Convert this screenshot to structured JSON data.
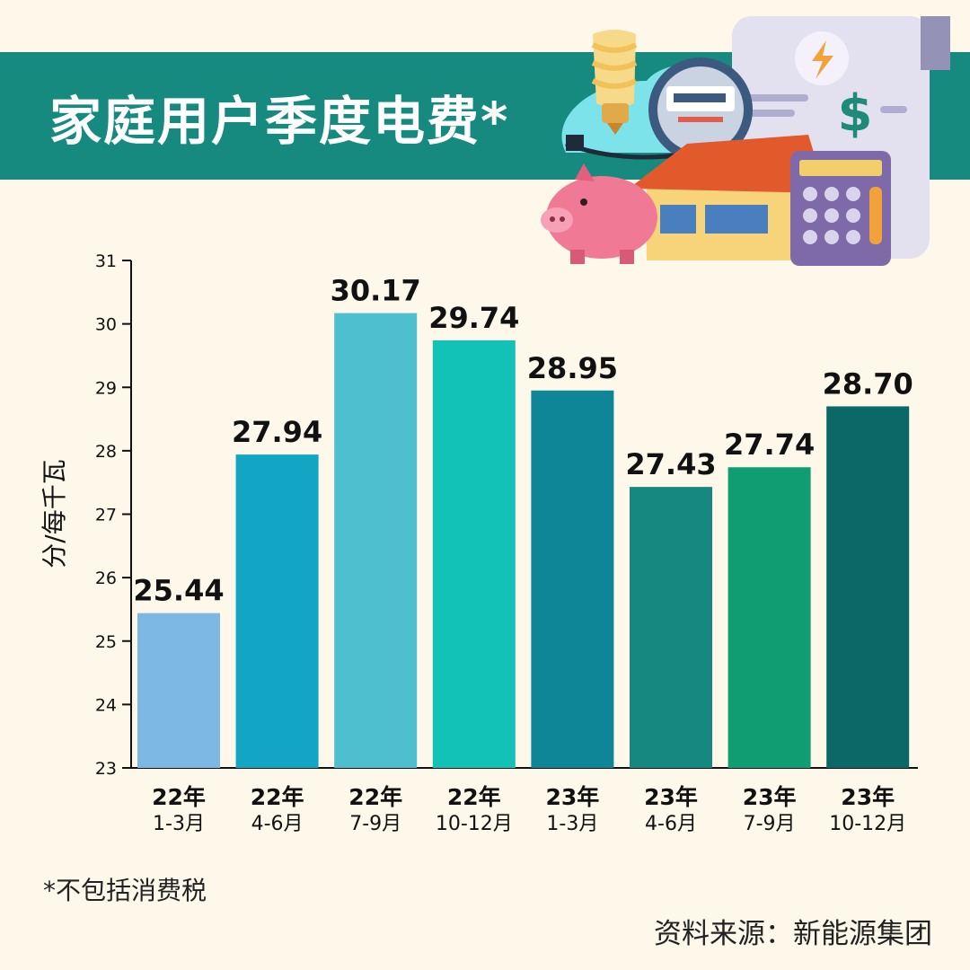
{
  "header": {
    "title": "家庭用户季度电费*"
  },
  "chart_data": {
    "type": "bar",
    "title": "家庭用户季度电费*",
    "ylabel": "分/每千瓦",
    "xlabel": "",
    "ylim": [
      23,
      31
    ],
    "yticks": [
      23,
      24,
      25,
      26,
      27,
      28,
      29,
      30,
      31
    ],
    "categories": [
      {
        "year": "22年",
        "period": "1-3月"
      },
      {
        "year": "22年",
        "period": "4-6月"
      },
      {
        "year": "22年",
        "period": "7-9月"
      },
      {
        "year": "22年",
        "period": "10-12月"
      },
      {
        "year": "23年",
        "period": "1-3月"
      },
      {
        "year": "23年",
        "period": "4-6月"
      },
      {
        "year": "23年",
        "period": "7-9月"
      },
      {
        "year": "23年",
        "period": "10-12月"
      }
    ],
    "values": [
      25.44,
      27.94,
      30.17,
      29.74,
      28.95,
      27.43,
      27.74,
      28.7
    ],
    "value_labels": [
      "25.44",
      "27.94",
      "30.17",
      "29.74",
      "28.95",
      "27.43",
      "27.74",
      "28.70"
    ],
    "bar_colors": [
      "#7cb8e2",
      "#12a5c4",
      "#4ebfcf",
      "#12c2b7",
      "#0e8698",
      "#178880",
      "#0e9e72",
      "#0b6866"
    ],
    "grid": false,
    "legend": "none"
  },
  "footnote": "*不包括消费税",
  "source": "资料来源：新能源集团"
}
